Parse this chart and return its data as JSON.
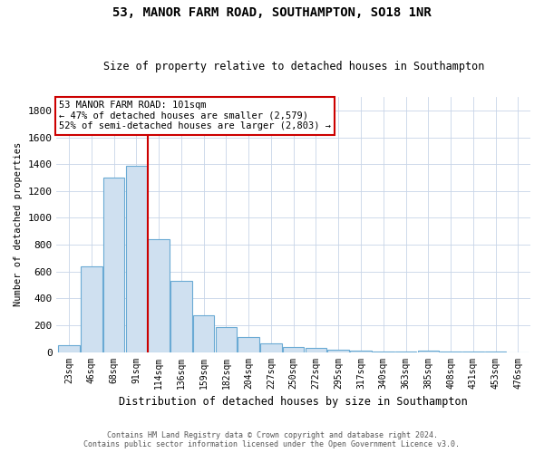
{
  "title_line1": "53, MANOR FARM ROAD, SOUTHAMPTON, SO18 1NR",
  "title_line2": "Size of property relative to detached houses in Southampton",
  "xlabel": "Distribution of detached houses by size in Southampton",
  "ylabel": "Number of detached properties",
  "categories": [
    "23sqm",
    "46sqm",
    "68sqm",
    "91sqm",
    "114sqm",
    "136sqm",
    "159sqm",
    "182sqm",
    "204sqm",
    "227sqm",
    "250sqm",
    "272sqm",
    "295sqm",
    "317sqm",
    "340sqm",
    "363sqm",
    "385sqm",
    "408sqm",
    "431sqm",
    "453sqm",
    "476sqm"
  ],
  "values": [
    50,
    640,
    1300,
    1390,
    840,
    530,
    275,
    185,
    110,
    65,
    35,
    30,
    20,
    10,
    5,
    5,
    12,
    3,
    2,
    1,
    0
  ],
  "bar_color": "#cfe0f0",
  "bar_edge_color": "#6aaad4",
  "vline_pos": 3.5,
  "vline_color": "#cc0000",
  "ylim": [
    0,
    1900
  ],
  "yticks": [
    0,
    200,
    400,
    600,
    800,
    1000,
    1200,
    1400,
    1600,
    1800
  ],
  "annotation_text": "53 MANOR FARM ROAD: 101sqm\n← 47% of detached houses are smaller (2,579)\n52% of semi-detached houses are larger (2,803) →",
  "annotation_box_color": "#ffffff",
  "annotation_box_edge_color": "#cc0000",
  "footnote_line1": "Contains HM Land Registry data © Crown copyright and database right 2024.",
  "footnote_line2": "Contains public sector information licensed under the Open Government Licence v3.0.",
  "background_color": "#ffffff",
  "grid_color": "#c8d4e8",
  "fig_width": 6.0,
  "fig_height": 5.0,
  "dpi": 100
}
